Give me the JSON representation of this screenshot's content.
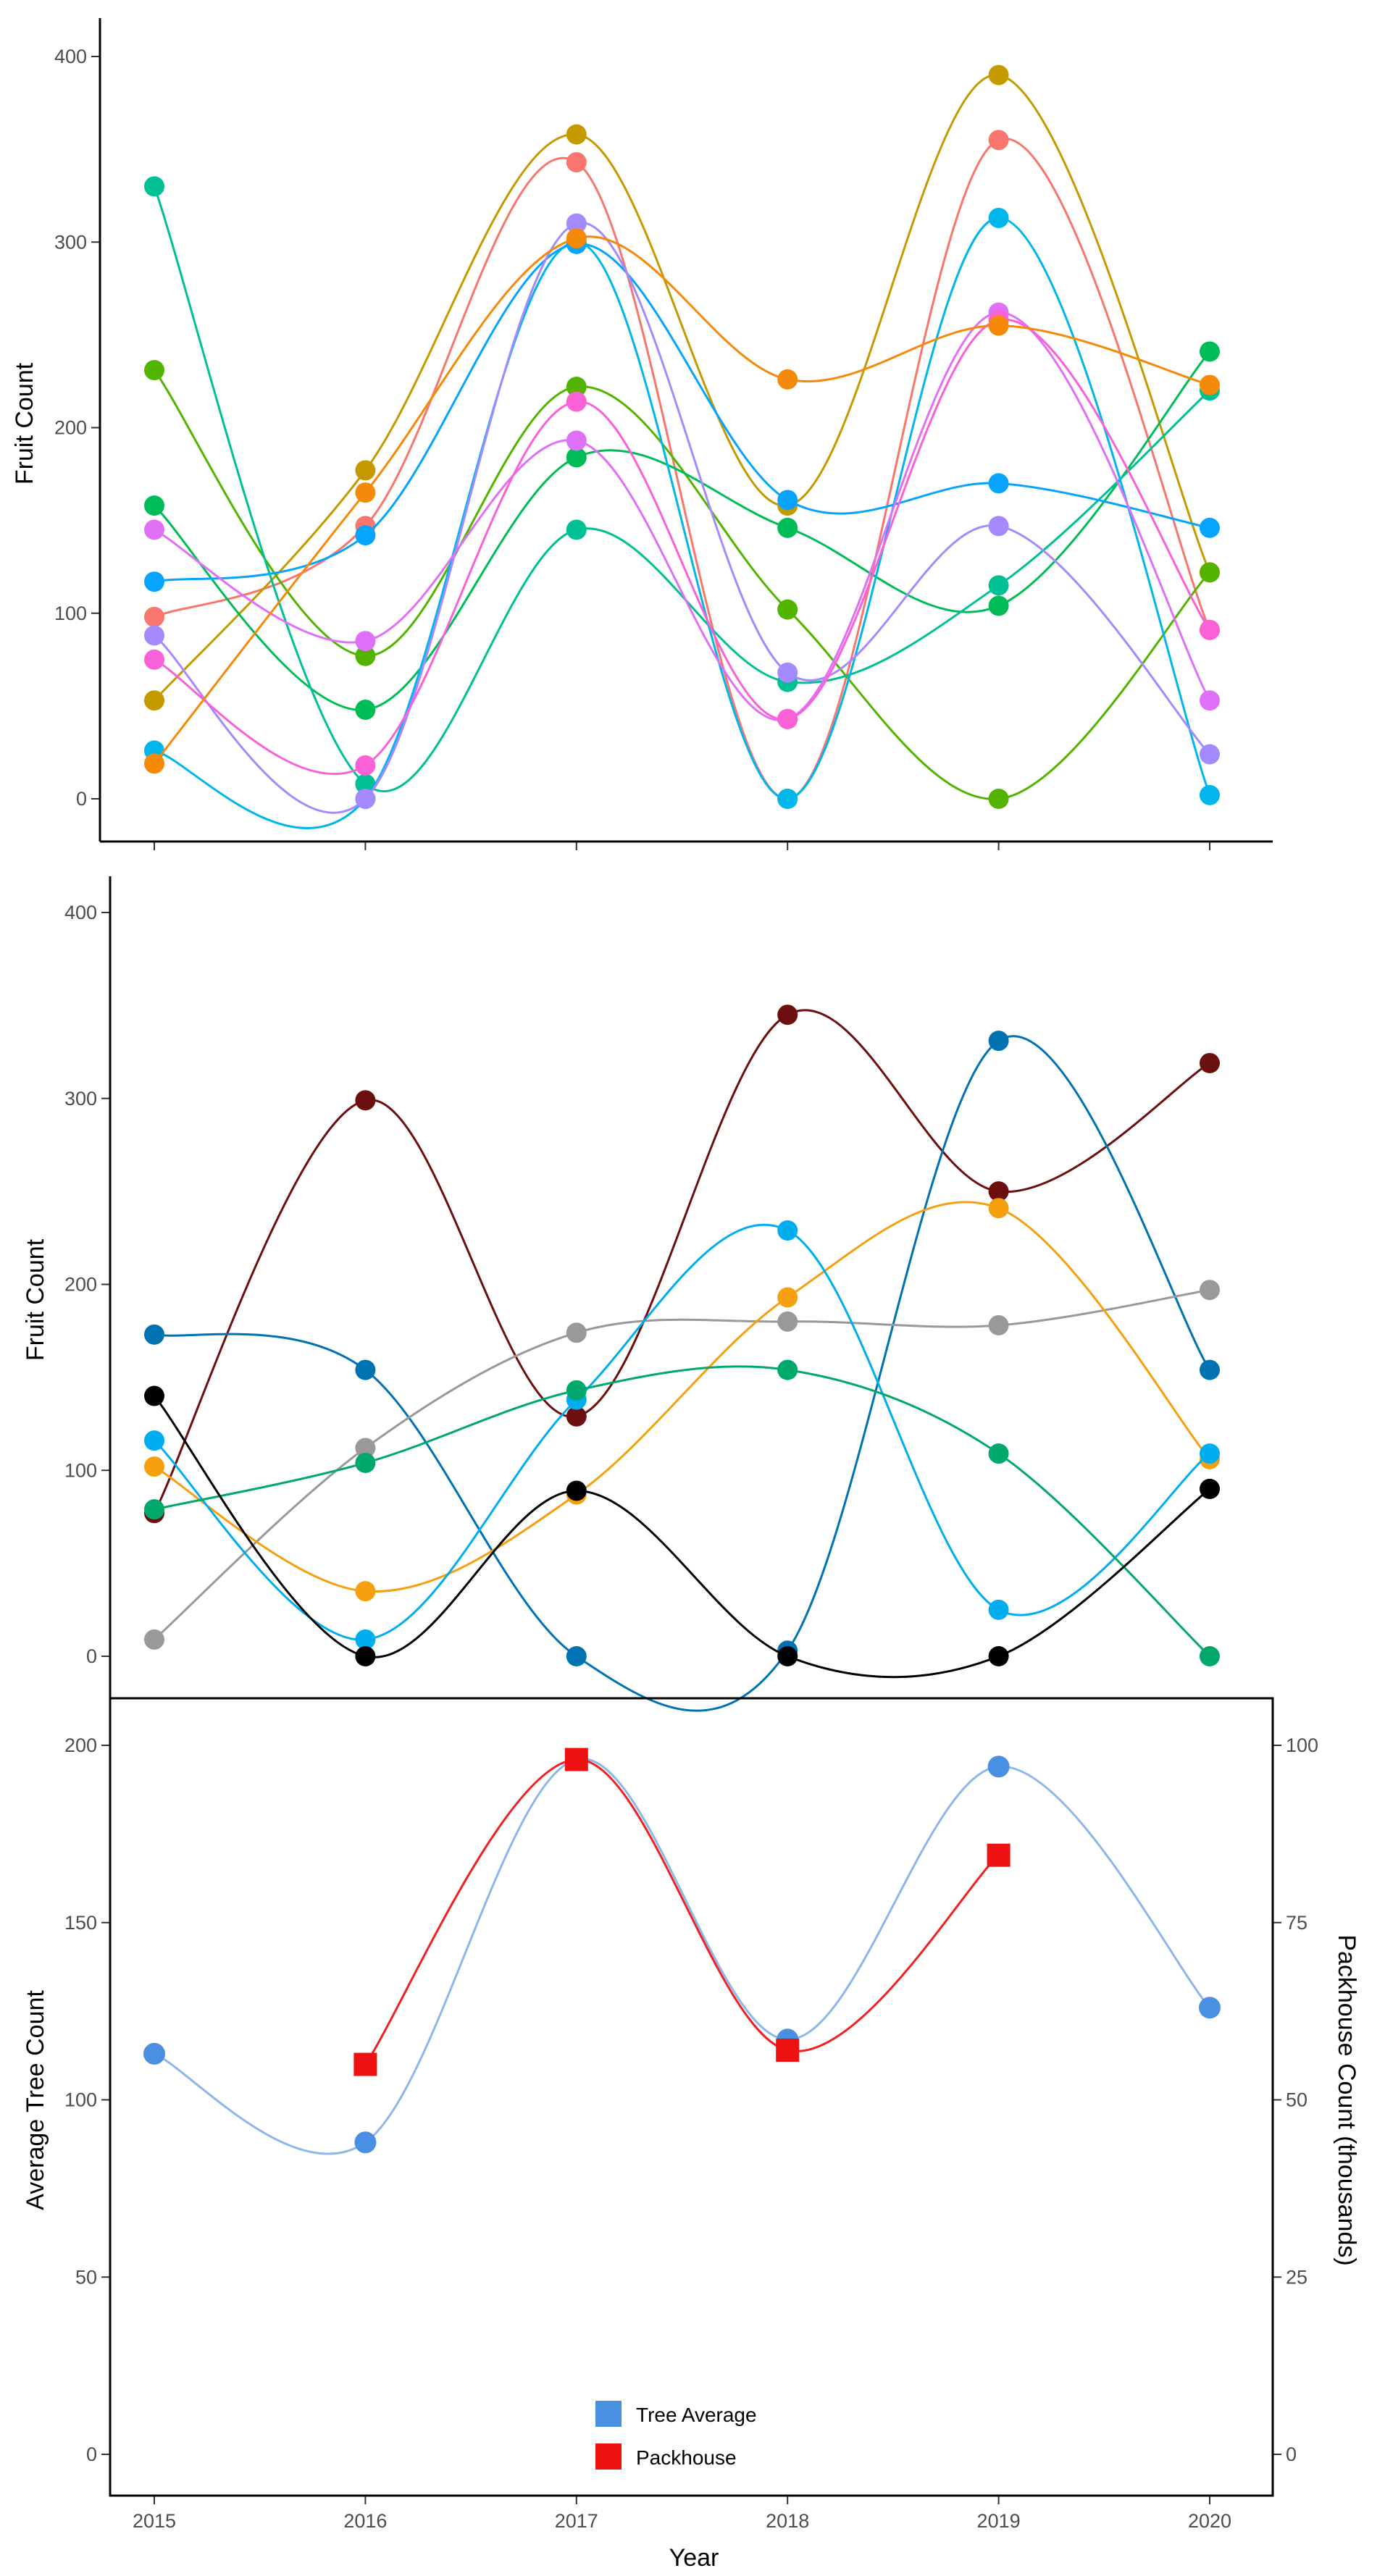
{
  "chart_data": [
    {
      "type": "line",
      "title": "",
      "xlabel": "",
      "ylabel": "Fruit Count",
      "x": [
        2015,
        2016,
        2017,
        2018,
        2019,
        2020
      ],
      "x_ticks": [],
      "y_ticks": [
        "0",
        "100",
        "200",
        "300",
        "400"
      ],
      "ylim": [
        0,
        420
      ],
      "smooth": true,
      "grid": false,
      "legend": "none",
      "series": [
        {
          "color": "#f8766d",
          "values": [
            98,
            147,
            343,
            0,
            355,
            91
          ]
        },
        {
          "color": "#c49a00",
          "values": [
            53,
            177,
            358,
            158,
            390,
            122
          ]
        },
        {
          "color": "#53b400",
          "values": [
            231,
            77,
            222,
            102,
            0,
            122
          ]
        },
        {
          "color": "#00bc56",
          "values": [
            158,
            48,
            184,
            146,
            104,
            241
          ]
        },
        {
          "color": "#00c094",
          "values": [
            330,
            8,
            145,
            63,
            115,
            220
          ]
        },
        {
          "color": "#00b6eb",
          "values": [
            26,
            0,
            300,
            0,
            313,
            2
          ]
        },
        {
          "color": "#06a4ff",
          "values": [
            117,
            142,
            299,
            161,
            170,
            146
          ]
        },
        {
          "color": "#a58aff",
          "values": [
            88,
            0,
            310,
            68,
            147,
            24
          ]
        },
        {
          "color": "#df70f8",
          "values": [
            145,
            85,
            193,
            43,
            262,
            53
          ]
        },
        {
          "color": "#fb61d7",
          "values": [
            75,
            18,
            214,
            43,
            258,
            91
          ]
        },
        {
          "color": "#f58a0a",
          "values": [
            19,
            165,
            302,
            226,
            255,
            223
          ]
        }
      ]
    },
    {
      "type": "line",
      "title": "",
      "xlabel": "",
      "ylabel": "Fruit Count",
      "x": [
        2015,
        2016,
        2017,
        2018,
        2019,
        2020
      ],
      "x_ticks": [],
      "y_ticks": [
        "0",
        "100",
        "200",
        "300",
        "400"
      ],
      "ylim": [
        0,
        420
      ],
      "smooth": true,
      "grid": false,
      "legend": "none",
      "series": [
        {
          "color": "#6b0f0f",
          "values": [
            77,
            299,
            129,
            345,
            250,
            319
          ]
        },
        {
          "color": "#0072b2",
          "values": [
            173,
            154,
            0,
            3,
            331,
            154
          ]
        },
        {
          "color": "#999999",
          "values": [
            9,
            112,
            174,
            180,
            178,
            197
          ]
        },
        {
          "color": "#f5a00f",
          "values": [
            102,
            35,
            87,
            193,
            241,
            106
          ]
        },
        {
          "color": "#00aeef",
          "values": [
            116,
            9,
            138,
            229,
            25,
            109
          ]
        },
        {
          "color": "#00a86b",
          "values": [
            79,
            104,
            143,
            154,
            109,
            0
          ]
        },
        {
          "color": "#000000",
          "values": [
            140,
            0,
            89,
            0,
            0,
            90
          ]
        }
      ]
    },
    {
      "type": "line",
      "title": "",
      "xlabel": "Year",
      "ylabel": "Average Tree Count",
      "ylabel_right": "Packhouse Count (thousands)",
      "x": [
        2015,
        2016,
        2017,
        2018,
        2019,
        2020
      ],
      "x_ticks": [
        "2015",
        "2016",
        "2017",
        "2018",
        "2019",
        "2020"
      ],
      "y_ticks": [
        "0",
        "50",
        "100",
        "150",
        "200"
      ],
      "y_ticks_right": [
        "0",
        "25",
        "50",
        "75",
        "100"
      ],
      "ylim": [
        0,
        200
      ],
      "ylim_right": [
        0,
        100
      ],
      "smooth": true,
      "grid": false,
      "legend": "bottom-center",
      "series": [
        {
          "name": "Tree Average",
          "axis": "left",
          "marker": "circle",
          "color": "#4a90e2",
          "line_color": "#8db6ea",
          "values": [
            113,
            88,
            196,
            117,
            194,
            126
          ]
        },
        {
          "name": "Packhouse",
          "axis": "right",
          "marker": "square",
          "color": "#ee1111",
          "line_color": "#ee2222",
          "values": [
            null,
            55,
            98,
            57,
            84.5,
            null
          ]
        }
      ]
    }
  ]
}
